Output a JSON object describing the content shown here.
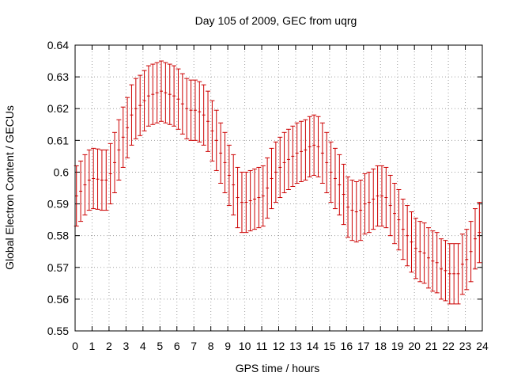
{
  "chart_data": {
    "type": "scatter",
    "title": "Day 105 of 2009, GEC from uqrg",
    "xlabel": "GPS time / hours",
    "ylabel": "Global Electron Content / GECUs",
    "xlim": [
      0,
      24
    ],
    "ylim": [
      0.55,
      0.64
    ],
    "grid": true,
    "xticks": [
      "0",
      "1",
      "2",
      "3",
      "4",
      "5",
      "6",
      "7",
      "8",
      "9",
      "10",
      "11",
      "12",
      "13",
      "14",
      "15",
      "16",
      "17",
      "18",
      "19",
      "20",
      "21",
      "22",
      "23",
      "24"
    ],
    "yticks": [
      "0.55",
      "0.56",
      "0.57",
      "0.58",
      "0.59",
      "0.6",
      "0.61",
      "0.62",
      "0.63",
      "0.64"
    ],
    "error_half_width": 0.0095,
    "series": [
      {
        "name": "GEC",
        "color": "#cc0000",
        "x": [
          0.08,
          0.33,
          0.58,
          0.83,
          1.08,
          1.33,
          1.58,
          1.83,
          2.08,
          2.33,
          2.58,
          2.83,
          3.08,
          3.33,
          3.58,
          3.83,
          4.08,
          4.33,
          4.58,
          4.83,
          5.08,
          5.33,
          5.58,
          5.83,
          6.08,
          6.33,
          6.58,
          6.83,
          7.08,
          7.33,
          7.58,
          7.83,
          8.08,
          8.33,
          8.58,
          8.83,
          9.08,
          9.33,
          9.58,
          9.83,
          10.08,
          10.33,
          10.58,
          10.83,
          11.08,
          11.33,
          11.58,
          11.83,
          12.08,
          12.33,
          12.58,
          12.83,
          13.08,
          13.33,
          13.58,
          13.83,
          14.08,
          14.33,
          14.58,
          14.83,
          15.08,
          15.33,
          15.58,
          15.83,
          16.08,
          16.33,
          16.58,
          16.83,
          17.08,
          17.33,
          17.58,
          17.83,
          18.08,
          18.33,
          18.58,
          18.83,
          19.08,
          19.33,
          19.58,
          19.83,
          20.08,
          20.33,
          20.58,
          20.83,
          21.08,
          21.33,
          21.58,
          21.83,
          22.08,
          22.33,
          22.58,
          22.83,
          23.08,
          23.33,
          23.58,
          23.83
        ],
        "y": [
          0.5925,
          0.594,
          0.596,
          0.5975,
          0.598,
          0.5978,
          0.5975,
          0.5975,
          0.5995,
          0.603,
          0.607,
          0.611,
          0.614,
          0.618,
          0.62,
          0.621,
          0.6225,
          0.624,
          0.6245,
          0.625,
          0.6255,
          0.625,
          0.6245,
          0.624,
          0.623,
          0.6215,
          0.62,
          0.6195,
          0.6195,
          0.619,
          0.618,
          0.616,
          0.613,
          0.61,
          0.606,
          0.603,
          0.599,
          0.596,
          0.592,
          0.5905,
          0.5905,
          0.591,
          0.5915,
          0.592,
          0.5925,
          0.595,
          0.598,
          0.6,
          0.6015,
          0.603,
          0.604,
          0.605,
          0.606,
          0.6065,
          0.607,
          0.608,
          0.6085,
          0.608,
          0.606,
          0.603,
          0.6,
          0.598,
          0.596,
          0.593,
          0.589,
          0.588,
          0.5875,
          0.588,
          0.59,
          0.5905,
          0.5915,
          0.5925,
          0.5925,
          0.592,
          0.5895,
          0.587,
          0.585,
          0.582,
          0.58,
          0.578,
          0.576,
          0.575,
          0.5745,
          0.573,
          0.572,
          0.5715,
          0.5695,
          0.569,
          0.568,
          0.568,
          0.568,
          0.571,
          0.5725,
          0.575,
          0.579,
          0.581
        ]
      }
    ]
  }
}
